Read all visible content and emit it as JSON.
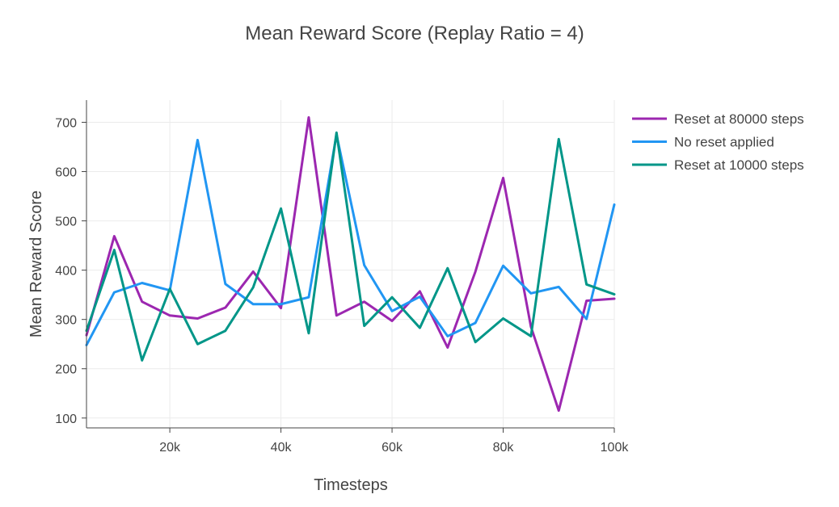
{
  "chart_data": {
    "type": "line",
    "title": "Mean Reward Score (Replay Ratio = 4)",
    "xlabel": "Timesteps",
    "ylabel": "Mean Reward Score",
    "xlim": [
      5000,
      100000
    ],
    "ylim": [
      80,
      745
    ],
    "x_ticks": [
      {
        "value": 20000,
        "label": "20k"
      },
      {
        "value": 40000,
        "label": "40k"
      },
      {
        "value": 60000,
        "label": "60k"
      },
      {
        "value": 80000,
        "label": "80k"
      },
      {
        "value": 100000,
        "label": "100k"
      }
    ],
    "y_ticks": [
      {
        "value": 100,
        "label": "100"
      },
      {
        "value": 200,
        "label": "200"
      },
      {
        "value": 300,
        "label": "300"
      },
      {
        "value": 400,
        "label": "400"
      },
      {
        "value": 500,
        "label": "500"
      },
      {
        "value": 600,
        "label": "600"
      },
      {
        "value": 700,
        "label": "700"
      }
    ],
    "grid": true,
    "legend_position": "top-right",
    "x": [
      5000,
      10000,
      15000,
      20000,
      25000,
      30000,
      35000,
      40000,
      45000,
      50000,
      55000,
      60000,
      65000,
      70000,
      75000,
      80000,
      85000,
      90000,
      95000,
      100000
    ],
    "series": [
      {
        "name": "Reset at 80000 steps",
        "color": "#9c27b0",
        "values": [
          268,
          469,
          336,
          308,
          302,
          324,
          397,
          323,
          710,
          308,
          336,
          297,
          357,
          243,
          397,
          587,
          285,
          115,
          338,
          342
        ]
      },
      {
        "name": "No reset applied",
        "color": "#2196f3",
        "values": [
          248,
          355,
          374,
          359,
          664,
          372,
          331,
          331,
          345,
          675,
          410,
          317,
          346,
          266,
          293,
          409,
          353,
          366,
          301,
          533
        ]
      },
      {
        "name": "Reset at 10000 steps",
        "color": "#009688",
        "values": [
          277,
          441,
          217,
          362,
          250,
          277,
          365,
          525,
          272,
          679,
          287,
          345,
          283,
          404,
          254,
          302,
          266,
          666,
          371,
          351
        ]
      }
    ]
  }
}
